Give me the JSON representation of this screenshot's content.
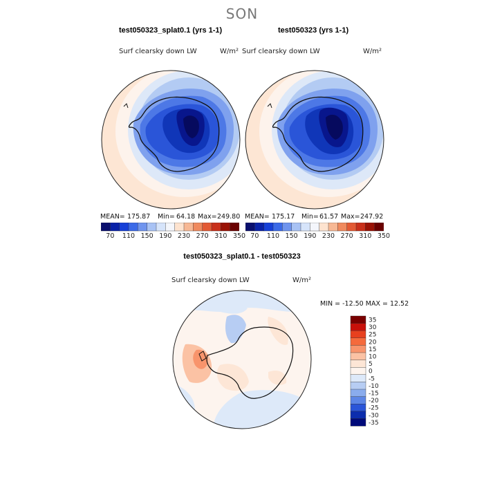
{
  "season": "SON",
  "panels": [
    {
      "title": "test050323_splat0.1 (yrs 1-1)",
      "variable": "Surf clearsky down LW",
      "units": "W/m²",
      "stats": {
        "mean_label": "MEAN=",
        "mean": "175.87",
        "min_label": "Min=",
        "min": "64.18",
        "max_label": "Max=",
        "max": "249.80"
      }
    },
    {
      "title": "test050323 (yrs 1-1)",
      "variable": "Surf clearsky down LW",
      "units": "W/m²",
      "stats": {
        "mean_label": "MEAN=",
        "mean": "175.17",
        "min_label": "Min=",
        "min": "61.57",
        "max_label": "Max=",
        "max": "247.92"
      }
    }
  ],
  "diff_panel": {
    "title": "test050323_splat0.1 - test050323",
    "variable": "Surf clearsky down LW",
    "units": "W/m²",
    "minmax": "MIN = -12.50 MAX =  12.52"
  },
  "abs_colorbar": {
    "ticks": [
      "70",
      "110",
      "150",
      "190",
      "230",
      "270",
      "310",
      "350"
    ],
    "colors": [
      "#0a0f6e",
      "#0a22a8",
      "#1640d8",
      "#3b6ae8",
      "#6f94ee",
      "#a8c2f4",
      "#d6e4fa",
      "#f4f6fb",
      "#fde3cf",
      "#f7b894",
      "#f08a5e",
      "#e35a34",
      "#c9301a",
      "#9a1205",
      "#6a0000"
    ]
  },
  "diff_colorbar": {
    "labels": [
      "35",
      "30",
      "25",
      "20",
      "15",
      "10",
      "5",
      "0",
      "-5",
      "-10",
      "-15",
      "-20",
      "-25",
      "-30",
      "-35"
    ],
    "colors": [
      "#7a0000",
      "#c8100a",
      "#e8401e",
      "#f56a3c",
      "#f8946c",
      "#fbc2a4",
      "#fde6d6",
      "#fdf4ee",
      "#dde9f9",
      "#b7cdf3",
      "#8aaced",
      "#5d86e6",
      "#2a55d8",
      "#0c2dad",
      "#000a7a"
    ]
  },
  "chart_data": [
    {
      "type": "heatmap",
      "title": "test050323_splat0.1 (yrs 1-1)",
      "variable": "Surf clearsky down LW",
      "units": "W/m²",
      "projection": "south polar stereographic",
      "mean": 175.87,
      "min": 64.18,
      "max": 249.8,
      "levels": [
        70,
        90,
        110,
        130,
        150,
        170,
        190,
        210,
        230,
        250,
        270,
        290,
        310,
        330,
        350
      ]
    },
    {
      "type": "heatmap",
      "title": "test050323 (yrs 1-1)",
      "variable": "Surf clearsky down LW",
      "units": "W/m²",
      "projection": "south polar stereographic",
      "mean": 175.17,
      "min": 61.57,
      "max": 247.92,
      "levels": [
        70,
        90,
        110,
        130,
        150,
        170,
        190,
        210,
        230,
        250,
        270,
        290,
        310,
        330,
        350
      ]
    },
    {
      "type": "heatmap",
      "title": "test050323_splat0.1 - test050323",
      "variable": "Surf clearsky down LW",
      "units": "W/m²",
      "projection": "south polar stereographic",
      "min": -12.5,
      "max": 12.52,
      "levels": [
        -35,
        -30,
        -25,
        -20,
        -15,
        -10,
        -5,
        0,
        5,
        10,
        15,
        20,
        25,
        30,
        35
      ]
    }
  ]
}
